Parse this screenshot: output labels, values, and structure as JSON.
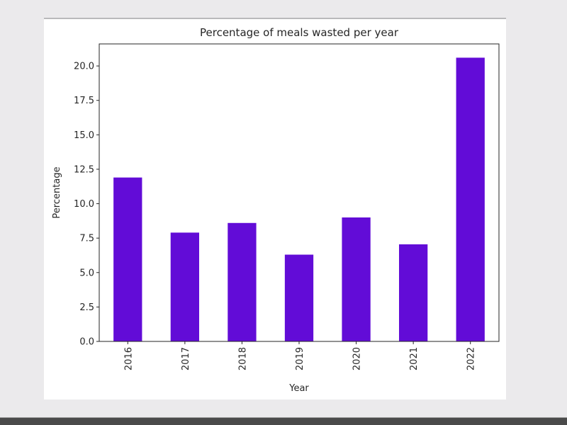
{
  "chart_data": {
    "type": "bar",
    "title": "Percentage of meals wasted per year",
    "xlabel": "Year",
    "ylabel": "Percentage",
    "categories": [
      "2016",
      "2017",
      "2018",
      "2019",
      "2020",
      "2021",
      "2022"
    ],
    "values": [
      11.9,
      7.9,
      8.6,
      6.3,
      9.0,
      7.05,
      20.6
    ],
    "ylim": [
      0,
      21.6
    ],
    "yticks": [
      0.0,
      2.5,
      5.0,
      7.5,
      10.0,
      12.5,
      15.0,
      17.5,
      20.0
    ],
    "ytick_labels": [
      "0.0",
      "2.5",
      "5.0",
      "7.5",
      "10.0",
      "12.5",
      "15.0",
      "17.5",
      "20.0"
    ],
    "xtick_rotation": "vertical",
    "grid": false,
    "legend": "none",
    "bar_color": "#620cd7"
  }
}
